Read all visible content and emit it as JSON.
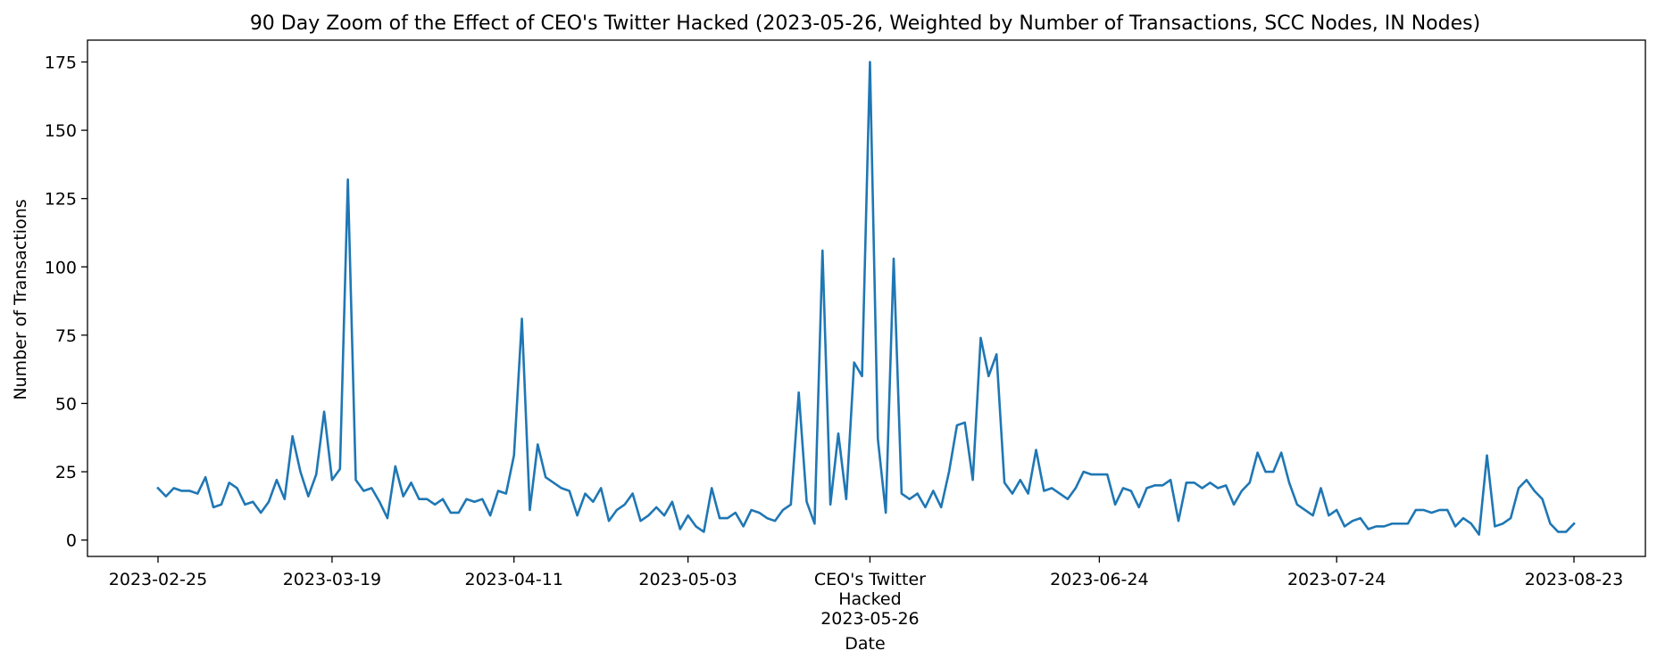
{
  "chart_data": {
    "type": "line",
    "title": "90 Day Zoom of the Effect of CEO's Twitter Hacked (2023-05-26, Weighted by Number of Transactions, SCC Nodes, IN Nodes)",
    "xlabel": "Date",
    "ylabel": "Number of Transactions",
    "x_start": "2023-02-25",
    "x_end": "2023-08-23",
    "ylim": [
      -6,
      183
    ],
    "yticks": [
      0,
      25,
      50,
      75,
      100,
      125,
      150,
      175
    ],
    "xticks": [
      {
        "date": "2023-02-25",
        "lines": [
          "2023-02-25"
        ]
      },
      {
        "date": "2023-03-19",
        "lines": [
          "2023-03-19"
        ]
      },
      {
        "date": "2023-04-11",
        "lines": [
          "2023-04-11"
        ]
      },
      {
        "date": "2023-05-03",
        "lines": [
          "2023-05-03"
        ]
      },
      {
        "date": "2023-05-26",
        "lines": [
          "CEO's Twitter",
          "Hacked",
          "2023-05-26"
        ]
      },
      {
        "date": "2023-06-24",
        "lines": [
          "2023-06-24"
        ]
      },
      {
        "date": "2023-07-24",
        "lines": [
          "2023-07-24"
        ]
      },
      {
        "date": "2023-08-23",
        "lines": [
          "2023-08-23"
        ]
      }
    ],
    "grid": false,
    "series": [
      {
        "color": "#1f77b4",
        "values": [
          19,
          16,
          19,
          18,
          18,
          17,
          23,
          12,
          13,
          21,
          19,
          13,
          14,
          10,
          14,
          22,
          15,
          38,
          25,
          16,
          24,
          47,
          22,
          26,
          132,
          22,
          18,
          19,
          14,
          8,
          27,
          16,
          21,
          15,
          15,
          13,
          15,
          10,
          10,
          15,
          14,
          15,
          9,
          18,
          17,
          31,
          81,
          11,
          35,
          23,
          21,
          19,
          18,
          9,
          17,
          14,
          19,
          7,
          11,
          13,
          17,
          7,
          9,
          12,
          9,
          14,
          4,
          9,
          5,
          3,
          19,
          8,
          8,
          10,
          5,
          11,
          10,
          8,
          7,
          11,
          13,
          54,
          14,
          6,
          106,
          13,
          39,
          15,
          65,
          60,
          175,
          37,
          10,
          103,
          17,
          15,
          17,
          12,
          18,
          12,
          25,
          42,
          43,
          22,
          74,
          60,
          68,
          21,
          17,
          22,
          17,
          33,
          18,
          19,
          17,
          15,
          19,
          25,
          24,
          24,
          24,
          13,
          19,
          18,
          12,
          19,
          20,
          20,
          22,
          7,
          21,
          21,
          19,
          21,
          19,
          20,
          13,
          18,
          21,
          32,
          25,
          25,
          32,
          21,
          13,
          11,
          9,
          19,
          9,
          11,
          5,
          7,
          8,
          4,
          5,
          5,
          6,
          6,
          6,
          11,
          11,
          10,
          11,
          11,
          5,
          8,
          6,
          2,
          31,
          5,
          6,
          8,
          19,
          22,
          18,
          15,
          6,
          3,
          3,
          6
        ]
      }
    ]
  }
}
